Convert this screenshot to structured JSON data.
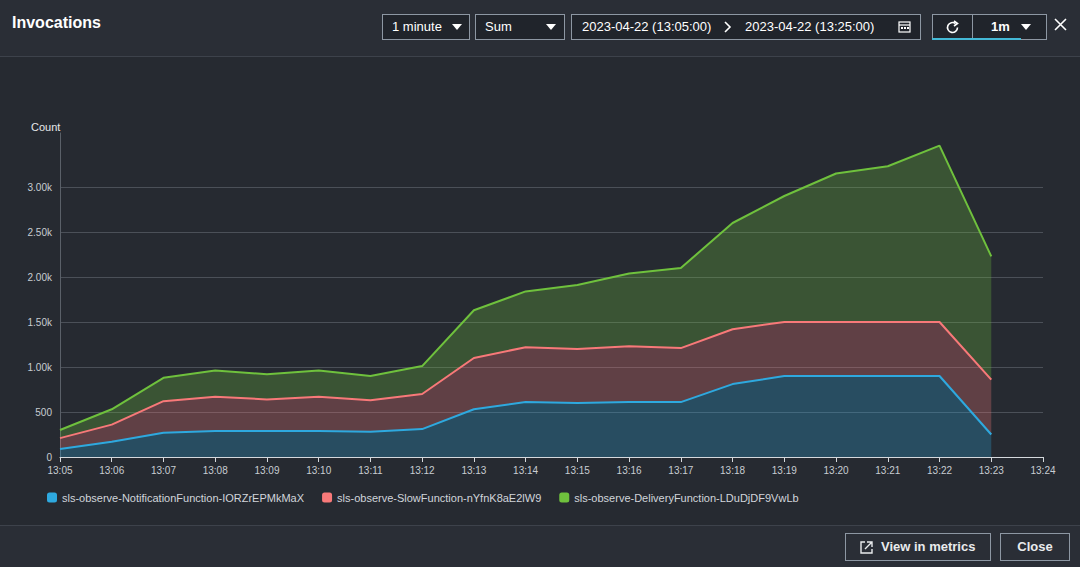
{
  "chart_data": {
    "type": "line",
    "title": "Invocations",
    "y_label": "Count",
    "stacked": true,
    "grid": true,
    "legend": "bottom",
    "x": [
      "13:05",
      "13:06",
      "13:07",
      "13:08",
      "13:09",
      "13:10",
      "13:11",
      "13:12",
      "13:13",
      "13:14",
      "13:15",
      "13:16",
      "13:17",
      "13:18",
      "13:19",
      "13:20",
      "13:21",
      "13:22",
      "13:23",
      "13:24"
    ],
    "ylim": [
      0,
      3600
    ],
    "yticks": [
      0,
      500,
      {
        "value": 1000,
        "label": "1.00k"
      },
      {
        "value": 1500,
        "label": "1.50k"
      },
      {
        "value": 2000,
        "label": "2.00k"
      },
      {
        "value": 2500,
        "label": "2.50k"
      },
      {
        "value": 3000,
        "label": "3.00k"
      }
    ],
    "series": [
      {
        "name": "sls-observe-NotificationFunction-IORZrEPMkMaX",
        "color": "#2ea9df",
        "values": [
          90,
          170,
          270,
          290,
          290,
          290,
          280,
          310,
          530,
          610,
          600,
          610,
          610,
          810,
          900,
          900,
          900,
          900,
          250,
          null
        ]
      },
      {
        "name": "sls-observe-SlowFunction-nYfnK8aE2lW9",
        "color": "#f87979",
        "values": [
          120,
          190,
          350,
          380,
          350,
          380,
          350,
          390,
          570,
          610,
          600,
          620,
          600,
          610,
          600,
          600,
          600,
          600,
          610,
          null
        ]
      },
      {
        "name": "sls-observe-DeliveryFunction-LDuDjDF9VwLb",
        "color": "#6fc13d",
        "values": [
          90,
          170,
          260,
          290,
          280,
          290,
          270,
          310,
          530,
          620,
          710,
          810,
          890,
          1180,
          1400,
          1650,
          1730,
          1960,
          1370,
          null
        ]
      }
    ]
  },
  "panel": {
    "period": "1 minute",
    "statistic": "Sum",
    "start": "2023-04-22 (13:05:00)",
    "end": "2023-04-22 (13:25:00)",
    "refresh": "1m",
    "buttons": [
      "View in metrics",
      "Close"
    ]
  }
}
